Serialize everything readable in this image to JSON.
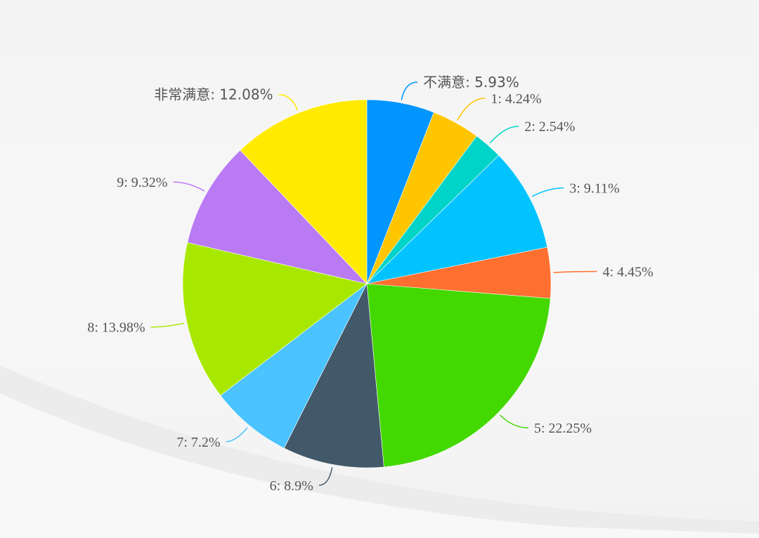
{
  "chart_data": {
    "type": "pie",
    "slices": [
      {
        "name": "不满意",
        "value": 5.93,
        "label": "不满意: 5.93%",
        "color": "#0095ff"
      },
      {
        "name": "1",
        "value": 4.24,
        "label": "1: 4.24%",
        "color": "#ffc600"
      },
      {
        "name": "2",
        "value": 2.54,
        "label": "2: 2.54%",
        "color": "#00d4c8"
      },
      {
        "name": "3",
        "value": 9.11,
        "label": "3: 9.11%",
        "color": "#00c3ff"
      },
      {
        "name": "4",
        "value": 4.45,
        "label": "4: 4.45%",
        "color": "#ff6f2f"
      },
      {
        "name": "5",
        "value": 22.25,
        "label": "5: 22.25%",
        "color": "#43d800"
      },
      {
        "name": "6",
        "value": 8.9,
        "label": "6: 8.9%",
        "color": "#415968"
      },
      {
        "name": "7",
        "value": 7.2,
        "label": "7: 7.2%",
        "color": "#4bc3ff"
      },
      {
        "name": "8",
        "value": 13.98,
        "label": "8: 13.98%",
        "color": "#a8e800"
      },
      {
        "name": "9",
        "value": 9.32,
        "label": "9: 9.32%",
        "color": "#b97af4"
      },
      {
        "name": "非常满意",
        "value": 12.08,
        "label": "非常满意: 12.08%",
        "color": "#ffea00"
      }
    ],
    "legend": "none"
  }
}
